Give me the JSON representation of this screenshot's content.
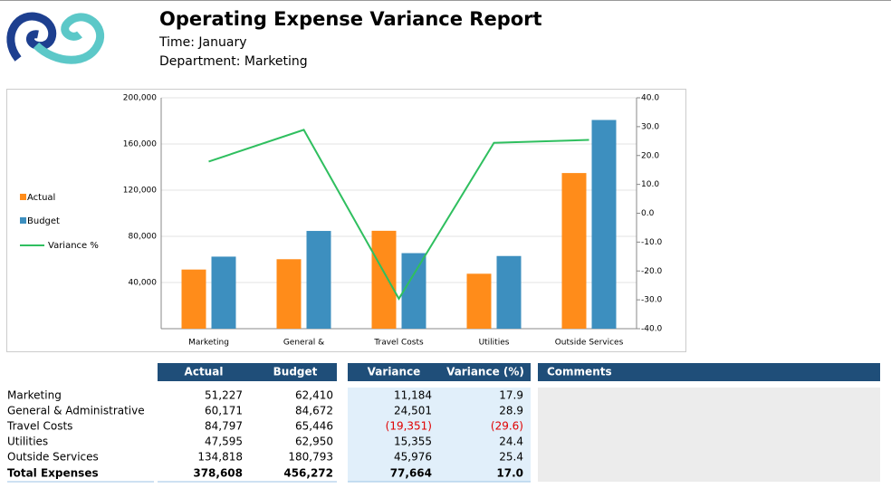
{
  "header": {
    "title": "Operating Expense Variance Report",
    "time": "Time: January",
    "department": "Department: Marketing"
  },
  "chart_data": {
    "type": "combo",
    "categories": [
      "Marketing",
      "General &",
      "Travel Costs",
      "Utilities",
      "Outside Services"
    ],
    "series": [
      {
        "name": "Actual",
        "type": "bar",
        "color": "#ff8c1a",
        "values": [
          51227,
          60171,
          84797,
          47595,
          134818
        ]
      },
      {
        "name": "Budget",
        "type": "bar",
        "color": "#3d8fbf",
        "values": [
          62410,
          84672,
          65446,
          62950,
          180793
        ]
      },
      {
        "name": "Variance %",
        "type": "line",
        "axis": "y2",
        "color": "#2fbf5f",
        "values": [
          17.9,
          28.9,
          -29.6,
          24.4,
          25.4
        ]
      }
    ],
    "ylim": [
      0,
      200000
    ],
    "yticks": [
      {
        "value": 40000,
        "label": "40,000"
      },
      {
        "value": 80000,
        "label": "80,000"
      },
      {
        "value": 120000,
        "label": "120,000"
      },
      {
        "value": 160000,
        "label": "160,000"
      },
      {
        "value": 200000,
        "label": "200,000"
      }
    ],
    "y2lim": [
      -40,
      40
    ],
    "y2ticks": [
      {
        "value": -40,
        "label": "-40.0"
      },
      {
        "value": -30,
        "label": "-30.0"
      },
      {
        "value": -20,
        "label": "-20.0"
      },
      {
        "value": -10,
        "label": "-10.0"
      },
      {
        "value": 0,
        "label": "0.0"
      },
      {
        "value": 10,
        "label": "10.0"
      },
      {
        "value": 20,
        "label": "20.0"
      },
      {
        "value": 30,
        "label": "30.0"
      },
      {
        "value": 40,
        "label": "40.0"
      }
    ],
    "grid": true,
    "legend": "left"
  },
  "table": {
    "columns": [
      "Actual",
      "Budget",
      "Variance",
      "Variance (%)",
      "Comments"
    ],
    "rows": [
      [
        "Marketing",
        "51,227",
        "62,410",
        "11,184",
        "17.9"
      ],
      [
        "General & Administrative",
        "60,171",
        "84,672",
        "24,501",
        "28.9"
      ],
      [
        "Travel Costs",
        "84,797",
        "65,446",
        "(19,351)",
        "(29.6)"
      ],
      [
        "Utilities",
        "47,595",
        "62,950",
        "15,355",
        "24.4"
      ],
      [
        "Outside Services",
        "134,818",
        "180,793",
        "45,976",
        "25.4"
      ]
    ],
    "total": [
      "Total Expenses",
      "378,608",
      "456,272",
      "77,664",
      "17.0"
    ]
  }
}
